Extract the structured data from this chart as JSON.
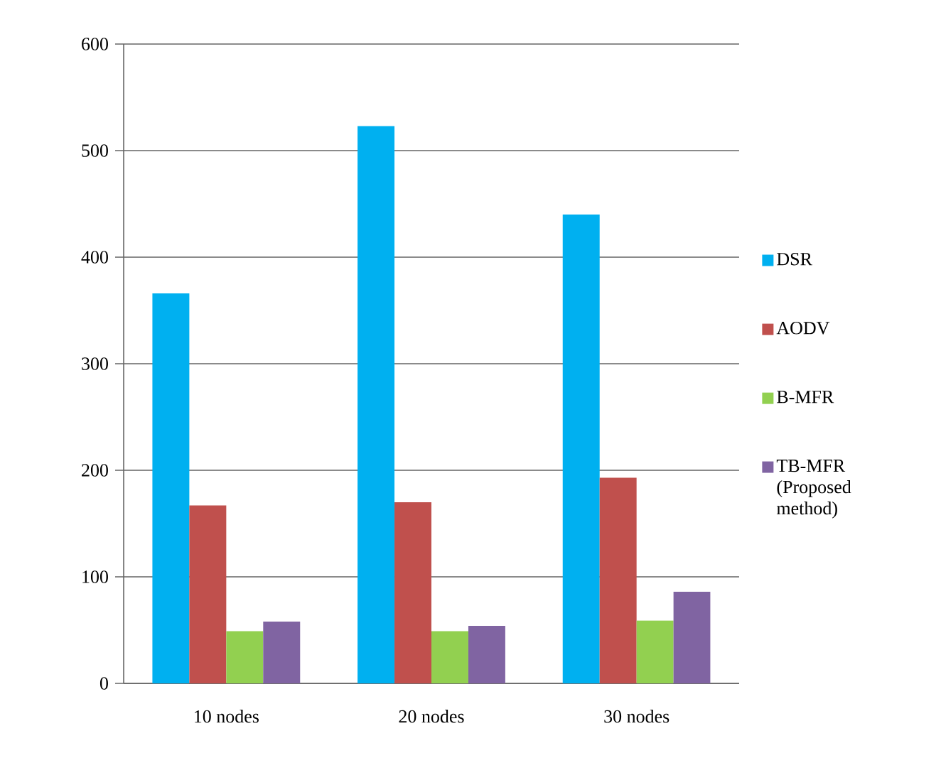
{
  "chart_data": {
    "type": "bar",
    "categories": [
      "10 nodes",
      "20 nodes",
      "30 nodes"
    ],
    "series": [
      {
        "name": "DSR",
        "color": "#00b0f0",
        "values": [
          366,
          523,
          440
        ]
      },
      {
        "name": "AODV",
        "color": "#c0504d",
        "values": [
          167,
          170,
          193
        ]
      },
      {
        "name": "B-MFR",
        "color": "#92d050",
        "values": [
          49,
          49,
          59
        ]
      },
      {
        "name": "TB-MFR (Proposed method)",
        "color": "#8064a2",
        "values": [
          58,
          54,
          86
        ]
      }
    ],
    "ylim": [
      0,
      600
    ],
    "yticks": [
      0,
      100,
      200,
      300,
      400,
      500,
      600
    ],
    "grid": "y",
    "legend": "right"
  }
}
